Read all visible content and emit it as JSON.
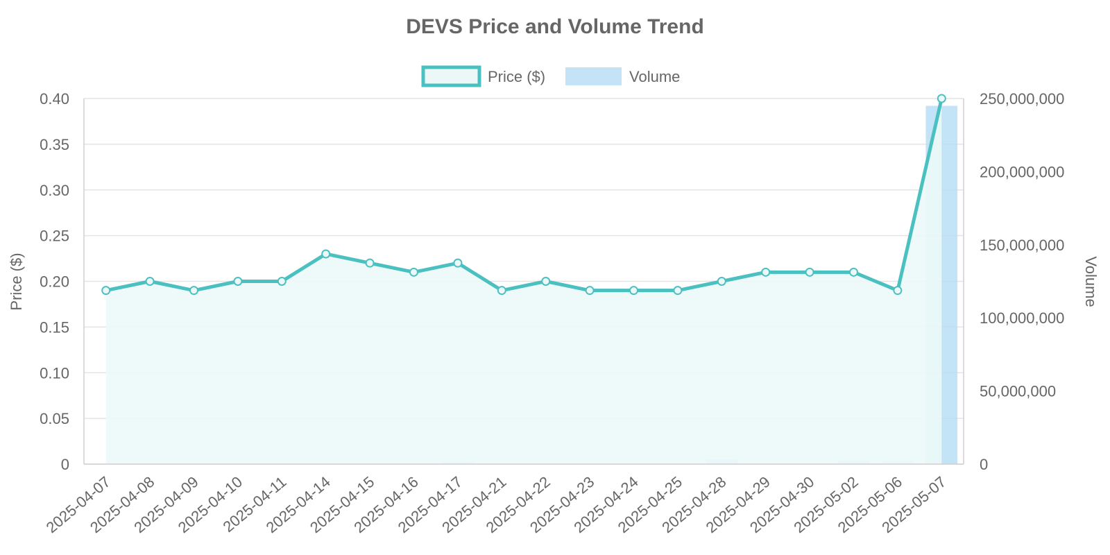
{
  "chart_data": {
    "type": "line",
    "title": "DEVS Price and Volume Trend",
    "categories": [
      "2025-04-07",
      "2025-04-08",
      "2025-04-09",
      "2025-04-10",
      "2025-04-11",
      "2025-04-14",
      "2025-04-15",
      "2025-04-16",
      "2025-04-17",
      "2025-04-21",
      "2025-04-22",
      "2025-04-23",
      "2025-04-24",
      "2025-04-25",
      "2025-04-28",
      "2025-04-29",
      "2025-04-30",
      "2025-05-02",
      "2025-05-06",
      "2025-05-07"
    ],
    "series": [
      {
        "name": "Price ($)",
        "type": "line",
        "axis": "left",
        "fill": true,
        "color": "#4bc0c0",
        "fill_color": "#ecf8f8",
        "values": [
          0.19,
          0.2,
          0.19,
          0.2,
          0.2,
          0.23,
          0.22,
          0.21,
          0.22,
          0.19,
          0.2,
          0.19,
          0.19,
          0.19,
          0.2,
          0.21,
          0.21,
          0.21,
          0.19,
          0.4
        ]
      },
      {
        "name": "Volume",
        "type": "bar",
        "axis": "right",
        "color": "#b8def5",
        "values": [
          300000,
          100000,
          100000,
          100000,
          100000,
          500000,
          200000,
          100000,
          1500000,
          300000,
          100000,
          100000,
          100000,
          100000,
          3000000,
          400000,
          100000,
          2400000,
          2100000,
          245000000
        ]
      }
    ],
    "y_left": {
      "label": "Price ($)",
      "min": 0,
      "max": 0.4,
      "ticks": [
        "0",
        "0.05",
        "0.10",
        "0.15",
        "0.20",
        "0.25",
        "0.30",
        "0.35",
        "0.40"
      ]
    },
    "y_right": {
      "label": "Volume",
      "min": 0,
      "max": 250000000,
      "ticks": [
        "0",
        "50,000,000",
        "100,000,000",
        "150,000,000",
        "200,000,000",
        "250,000,000"
      ]
    },
    "grid": true,
    "legend_position": "top-center"
  }
}
